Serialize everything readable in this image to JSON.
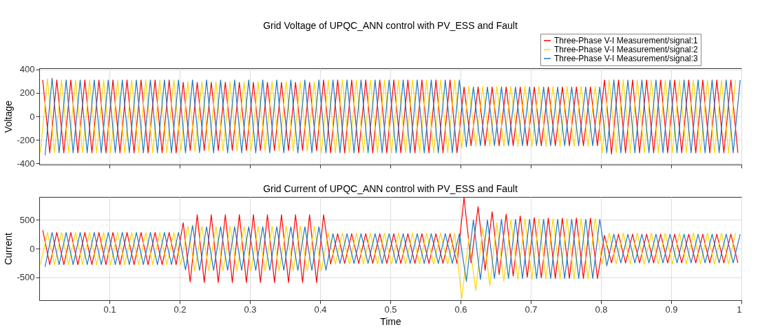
{
  "chart_data": [
    {
      "type": "line",
      "title": "Grid Voltage of UPQC_ANN control with PV_ESS and Fault",
      "ylabel": "Voltage",
      "xlim": [
        0,
        1
      ],
      "xticks": [
        0.1,
        0.2,
        0.3,
        0.4,
        0.5,
        0.6,
        0.7,
        0.8,
        0.9,
        1
      ],
      "ylim": [
        -410,
        410
      ],
      "yticks": [
        -400,
        -200,
        0,
        200,
        400
      ],
      "grid": true,
      "legend": "top right",
      "tick_labels": "y",
      "marker": "none",
      "line_style": "solid",
      "series": [
        {
          "name": "Three-Phase V-I Measurement/signal:1",
          "color": "#ff0000",
          "x": [
            0.005,
            0.015,
            0.025,
            0.035,
            0.045,
            0.055,
            0.065,
            0.075,
            0.085,
            0.095,
            0.105,
            0.115,
            0.125,
            0.135,
            0.145,
            0.155,
            0.165,
            0.175,
            0.185,
            0.195,
            0.205,
            0.215,
            0.225,
            0.235,
            0.245,
            0.255,
            0.265,
            0.275,
            0.285,
            0.295,
            0.305,
            0.315,
            0.325,
            0.335,
            0.345,
            0.355,
            0.365,
            0.375,
            0.385,
            0.395,
            0.405,
            0.415,
            0.425,
            0.435,
            0.445,
            0.455,
            0.465,
            0.475,
            0.485,
            0.495,
            0.505,
            0.515,
            0.525,
            0.535,
            0.545,
            0.555,
            0.565,
            0.575,
            0.585,
            0.595,
            0.605,
            0.615,
            0.625,
            0.635,
            0.645,
            0.655,
            0.665,
            0.675,
            0.685,
            0.695,
            0.705,
            0.715,
            0.725,
            0.735,
            0.745,
            0.755,
            0.765,
            0.775,
            0.785,
            0.795,
            0.805,
            0.815,
            0.825,
            0.835,
            0.845,
            0.855,
            0.865,
            0.875,
            0.885,
            0.895,
            0.905,
            0.915,
            0.925,
            0.935,
            0.945,
            0.955,
            0.965,
            0.975,
            0.985,
            0.995
          ],
          "values": [
            310,
            -310,
            310,
            -310,
            310,
            -310,
            310,
            -310,
            310,
            -310,
            310,
            -310,
            310,
            -310,
            310,
            -310,
            310,
            -310,
            310,
            -310,
            290,
            -290,
            290,
            -290,
            290,
            -290,
            290,
            -290,
            290,
            -290,
            290,
            -290,
            290,
            -290,
            290,
            -290,
            290,
            -290,
            290,
            -290,
            310,
            -310,
            310,
            -310,
            310,
            -310,
            310,
            -310,
            310,
            -310,
            310,
            -310,
            310,
            -310,
            310,
            -310,
            310,
            -310,
            310,
            -310,
            250,
            -250,
            250,
            -250,
            250,
            -250,
            250,
            -250,
            250,
            -250,
            250,
            -250,
            250,
            -250,
            250,
            -250,
            250,
            -250,
            250,
            -250,
            310,
            -320,
            310,
            -310,
            310,
            -310,
            310,
            -310,
            310,
            -310,
            310,
            -310,
            310,
            -310,
            310,
            -310,
            310,
            -310,
            310,
            -310
          ]
        },
        {
          "name": "Three-Phase V-I Measurement/signal:2",
          "color": "#ffd700",
          "x": [
            0.0017,
            0.0117,
            0.0217,
            0.0317,
            0.0417,
            0.0517,
            0.0617,
            0.0717,
            0.0817,
            0.0917,
            0.1017,
            0.1117,
            0.1217,
            0.1317,
            0.1417,
            0.1517,
            0.1617,
            0.1717,
            0.1817,
            0.1917,
            0.2017,
            0.2117,
            0.2217,
            0.2317,
            0.2417,
            0.2517,
            0.2617,
            0.2717,
            0.2817,
            0.2917,
            0.3017,
            0.3117,
            0.3217,
            0.3317,
            0.3417,
            0.3517,
            0.3617,
            0.3717,
            0.3817,
            0.3917,
            0.4017,
            0.4117,
            0.4217,
            0.4317,
            0.4417,
            0.4517,
            0.4617,
            0.4717,
            0.4817,
            0.4917,
            0.5017,
            0.5117,
            0.5217,
            0.5317,
            0.5417,
            0.5517,
            0.5617,
            0.5717,
            0.5817,
            0.5917,
            0.6017,
            0.6117,
            0.6217,
            0.6317,
            0.6417,
            0.6517,
            0.6617,
            0.6717,
            0.6817,
            0.6917,
            0.7017,
            0.7117,
            0.7217,
            0.7317,
            0.7417,
            0.7517,
            0.7617,
            0.7717,
            0.7817,
            0.7917,
            0.8017,
            0.8117,
            0.8217,
            0.8317,
            0.8417,
            0.8517,
            0.8617,
            0.8717,
            0.8817,
            0.8917,
            0.9017,
            0.9117,
            0.9217,
            0.9317,
            0.9417,
            0.9517,
            0.9617,
            0.9717,
            0.9817,
            0.9917
          ],
          "values": [
            -310,
            320,
            -310,
            310,
            -310,
            310,
            -310,
            310,
            -310,
            310,
            -310,
            310,
            -310,
            310,
            -310,
            310,
            -310,
            310,
            -310,
            310,
            -295,
            295,
            -295,
            295,
            -295,
            295,
            -295,
            295,
            -295,
            295,
            -295,
            295,
            -295,
            295,
            -295,
            295,
            -295,
            295,
            -295,
            295,
            -310,
            310,
            -310,
            310,
            -310,
            310,
            -310,
            310,
            -310,
            310,
            -310,
            310,
            -310,
            310,
            -310,
            310,
            -310,
            310,
            -310,
            310,
            -270,
            255,
            -255,
            255,
            -255,
            255,
            -255,
            255,
            -255,
            255,
            -255,
            255,
            -255,
            255,
            -255,
            255,
            -255,
            255,
            -255,
            255,
            -310,
            310,
            -310,
            310,
            -310,
            310,
            -310,
            310,
            -310,
            310,
            -310,
            310,
            -310,
            310,
            -310,
            310,
            -310,
            310,
            -310,
            310
          ]
        },
        {
          "name": "Three-Phase V-I Measurement/signal:3",
          "color": "#1f77c4",
          "x": [
            0.0083,
            0.0183,
            0.0283,
            0.0383,
            0.0483,
            0.0583,
            0.0683,
            0.0783,
            0.0883,
            0.0983,
            0.1083,
            0.1183,
            0.1283,
            0.1383,
            0.1483,
            0.1583,
            0.1683,
            0.1783,
            0.1883,
            0.1983,
            0.2083,
            0.2183,
            0.2283,
            0.2383,
            0.2483,
            0.2583,
            0.2683,
            0.2783,
            0.2883,
            0.2983,
            0.3083,
            0.3183,
            0.3283,
            0.3383,
            0.3483,
            0.3583,
            0.3683,
            0.3783,
            0.3883,
            0.3983,
            0.4083,
            0.4183,
            0.4283,
            0.4383,
            0.4483,
            0.4583,
            0.4683,
            0.4783,
            0.4883,
            0.4983,
            0.5083,
            0.5183,
            0.5283,
            0.5383,
            0.5483,
            0.5583,
            0.5683,
            0.5783,
            0.5883,
            0.5983,
            0.6083,
            0.6183,
            0.6283,
            0.6383,
            0.6483,
            0.6583,
            0.6683,
            0.6783,
            0.6883,
            0.6983,
            0.7083,
            0.7183,
            0.7283,
            0.7383,
            0.7483,
            0.7583,
            0.7683,
            0.7783,
            0.7883,
            0.7983,
            0.8083,
            0.8183,
            0.8283,
            0.8383,
            0.8483,
            0.8583,
            0.8683,
            0.8783,
            0.8883,
            0.8983,
            0.9083,
            0.9183,
            0.9283,
            0.9383,
            0.9483,
            0.9583,
            0.9683,
            0.9783,
            0.9883,
            0.9983
          ],
          "values": [
            -330,
            325,
            -310,
            310,
            -310,
            310,
            -310,
            310,
            -310,
            310,
            -310,
            310,
            -310,
            310,
            -310,
            310,
            -310,
            310,
            -310,
            310,
            -310,
            310,
            -310,
            310,
            -310,
            310,
            -310,
            310,
            -310,
            310,
            -310,
            310,
            -310,
            310,
            -310,
            310,
            -310,
            310,
            -310,
            310,
            -310,
            310,
            -310,
            310,
            -310,
            310,
            -310,
            310,
            -310,
            310,
            -310,
            310,
            -310,
            310,
            -310,
            310,
            -310,
            310,
            -310,
            310,
            -260,
            250,
            -250,
            250,
            -250,
            250,
            -250,
            250,
            -250,
            250,
            -250,
            250,
            -250,
            250,
            -250,
            250,
            -250,
            250,
            -250,
            250,
            -310,
            310,
            -310,
            310,
            -310,
            310,
            -310,
            310,
            -310,
            310,
            -310,
            310,
            -310,
            310,
            -310,
            310,
            -310,
            310,
            -310,
            310
          ]
        }
      ]
    },
    {
      "type": "line",
      "title": "Grid Current of UPQC_ANN control with PV_ESS and Fault",
      "xlabel": "Time",
      "ylabel": "Current",
      "xlim": [
        0,
        1
      ],
      "xticks": [
        0.1,
        0.2,
        0.3,
        0.4,
        0.5,
        0.6,
        0.7,
        0.8,
        0.9,
        1
      ],
      "ylim": [
        -900,
        900
      ],
      "yticks": [
        -500,
        0,
        500
      ],
      "grid": true,
      "marker": "none",
      "line_style": "solid",
      "series": [
        {
          "color": "#ff0000",
          "x": [
            0.005,
            0.015,
            0.025,
            0.035,
            0.045,
            0.055,
            0.065,
            0.075,
            0.085,
            0.095,
            0.105,
            0.115,
            0.125,
            0.135,
            0.145,
            0.155,
            0.165,
            0.175,
            0.185,
            0.195,
            0.205,
            0.215,
            0.225,
            0.235,
            0.245,
            0.255,
            0.265,
            0.275,
            0.285,
            0.295,
            0.305,
            0.315,
            0.325,
            0.335,
            0.345,
            0.355,
            0.365,
            0.375,
            0.385,
            0.395,
            0.405,
            0.415,
            0.425,
            0.435,
            0.445,
            0.455,
            0.465,
            0.475,
            0.485,
            0.495,
            0.505,
            0.515,
            0.525,
            0.535,
            0.545,
            0.555,
            0.565,
            0.575,
            0.585,
            0.595,
            0.605,
            0.615,
            0.625,
            0.635,
            0.645,
            0.655,
            0.665,
            0.675,
            0.685,
            0.695,
            0.705,
            0.715,
            0.725,
            0.735,
            0.745,
            0.755,
            0.765,
            0.775,
            0.785,
            0.795,
            0.805,
            0.815,
            0.825,
            0.835,
            0.845,
            0.855,
            0.865,
            0.875,
            0.885,
            0.895,
            0.905,
            0.915,
            0.925,
            0.935,
            0.945,
            0.955,
            0.965,
            0.975,
            0.985,
            0.995
          ],
          "values": [
            320,
            -280,
            280,
            -280,
            280,
            -280,
            280,
            -280,
            280,
            -280,
            280,
            -280,
            280,
            -280,
            280,
            -280,
            280,
            -280,
            280,
            -280,
            450,
            -580,
            590,
            -590,
            590,
            -590,
            590,
            -590,
            590,
            -590,
            590,
            -590,
            590,
            -590,
            590,
            -590,
            590,
            -590,
            590,
            -590,
            590,
            -270,
            260,
            -260,
            260,
            -260,
            260,
            -260,
            260,
            -260,
            260,
            -260,
            260,
            -260,
            260,
            -260,
            260,
            -260,
            260,
            -260,
            890,
            -250,
            730,
            -380,
            640,
            -450,
            600,
            -480,
            570,
            -500,
            540,
            -510,
            530,
            -520,
            530,
            -520,
            530,
            -520,
            530,
            -520,
            230,
            -250,
            250,
            -250,
            250,
            -250,
            250,
            -250,
            250,
            -250,
            250,
            -250,
            250,
            -250,
            250,
            -250,
            250,
            -250,
            250,
            -250
          ]
        },
        {
          "color": "#ffd700",
          "x": [
            0.0017,
            0.0117,
            0.0217,
            0.0317,
            0.0417,
            0.0517,
            0.0617,
            0.0717,
            0.0817,
            0.0917,
            0.1017,
            0.1117,
            0.1217,
            0.1317,
            0.1417,
            0.1517,
            0.1617,
            0.1717,
            0.1817,
            0.1917,
            0.2017,
            0.2117,
            0.2217,
            0.2317,
            0.2417,
            0.2517,
            0.2617,
            0.2717,
            0.2817,
            0.2917,
            0.3017,
            0.3117,
            0.3217,
            0.3317,
            0.3417,
            0.3517,
            0.3617,
            0.3717,
            0.3817,
            0.3917,
            0.4017,
            0.4117,
            0.4217,
            0.4317,
            0.4417,
            0.4517,
            0.4617,
            0.4717,
            0.4817,
            0.4917,
            0.5017,
            0.5117,
            0.5217,
            0.5317,
            0.5417,
            0.5517,
            0.5617,
            0.5717,
            0.5817,
            0.5917,
            0.6017,
            0.6117,
            0.6217,
            0.6317,
            0.6417,
            0.6517,
            0.6617,
            0.6717,
            0.6817,
            0.6917,
            0.7017,
            0.7117,
            0.7217,
            0.7317,
            0.7417,
            0.7517,
            0.7617,
            0.7717,
            0.7817,
            0.7917,
            0.8017,
            0.8117,
            0.8217,
            0.8317,
            0.8417,
            0.8517,
            0.8617,
            0.8717,
            0.8817,
            0.8917,
            0.9017,
            0.9117,
            0.9217,
            0.9317,
            0.9417,
            0.9517,
            0.9617,
            0.9717,
            0.9817,
            0.9917
          ],
          "values": [
            -280,
            280,
            -280,
            280,
            -280,
            280,
            -280,
            280,
            -280,
            280,
            -280,
            280,
            -280,
            280,
            -280,
            280,
            -280,
            280,
            -280,
            280,
            -280,
            390,
            -390,
            390,
            -390,
            390,
            -390,
            390,
            -390,
            390,
            -390,
            390,
            -390,
            390,
            -390,
            390,
            -390,
            390,
            -390,
            390,
            -390,
            270,
            -270,
            270,
            -270,
            270,
            -270,
            270,
            -270,
            270,
            -270,
            270,
            -270,
            270,
            -270,
            270,
            -270,
            270,
            -270,
            270,
            -870,
            180,
            -730,
            370,
            -650,
            450,
            -570,
            500,
            -540,
            520,
            -530,
            520,
            -530,
            520,
            -530,
            520,
            -530,
            520,
            -530,
            520,
            -270,
            270,
            -270,
            270,
            -270,
            270,
            -270,
            270,
            -270,
            270,
            -270,
            270,
            -270,
            270,
            -270,
            270,
            -270,
            270,
            -270,
            270
          ]
        },
        {
          "color": "#1f77c4",
          "x": [
            0.0083,
            0.0183,
            0.0283,
            0.0383,
            0.0483,
            0.0583,
            0.0683,
            0.0783,
            0.0883,
            0.0983,
            0.1083,
            0.1183,
            0.1283,
            0.1383,
            0.1483,
            0.1583,
            0.1683,
            0.1783,
            0.1883,
            0.1983,
            0.2083,
            0.2183,
            0.2283,
            0.2383,
            0.2483,
            0.2583,
            0.2683,
            0.2783,
            0.2883,
            0.2983,
            0.3083,
            0.3183,
            0.3283,
            0.3383,
            0.3483,
            0.3583,
            0.3683,
            0.3783,
            0.3883,
            0.3983,
            0.4083,
            0.4183,
            0.4283,
            0.4383,
            0.4483,
            0.4583,
            0.4683,
            0.4783,
            0.4883,
            0.4983,
            0.5083,
            0.5183,
            0.5283,
            0.5383,
            0.5483,
            0.5583,
            0.5683,
            0.5783,
            0.5883,
            0.5983,
            0.6083,
            0.6183,
            0.6283,
            0.6383,
            0.6483,
            0.6583,
            0.6683,
            0.6783,
            0.6883,
            0.6983,
            0.7083,
            0.7183,
            0.7283,
            0.7383,
            0.7483,
            0.7583,
            0.7683,
            0.7783,
            0.7883,
            0.7983,
            0.8083,
            0.8183,
            0.8283,
            0.8383,
            0.8483,
            0.8583,
            0.8683,
            0.8783,
            0.8883,
            0.8983,
            0.9083,
            0.9183,
            0.9283,
            0.9383,
            0.9483,
            0.9583,
            0.9683,
            0.9783,
            0.9883,
            0.9983
          ],
          "values": [
            -320,
            280,
            -280,
            280,
            -280,
            280,
            -280,
            280,
            -280,
            280,
            -280,
            280,
            -280,
            280,
            -280,
            280,
            -280,
            280,
            -280,
            280,
            -370,
            400,
            -380,
            380,
            -380,
            380,
            -380,
            380,
            -380,
            380,
            -380,
            380,
            -380,
            380,
            -380,
            380,
            -380,
            380,
            -380,
            380,
            -380,
            260,
            -260,
            260,
            -260,
            260,
            -260,
            260,
            -260,
            260,
            -260,
            260,
            -260,
            260,
            -260,
            260,
            -260,
            260,
            -260,
            260,
            -570,
            500,
            -540,
            500,
            -520,
            510,
            -520,
            510,
            -520,
            510,
            -520,
            510,
            -520,
            510,
            -520,
            510,
            -520,
            510,
            -520,
            510,
            -300,
            250,
            -250,
            250,
            -250,
            250,
            -250,
            250,
            -250,
            250,
            -250,
            250,
            -250,
            250,
            -250,
            250,
            -250,
            250,
            -250,
            250
          ]
        }
      ]
    }
  ]
}
